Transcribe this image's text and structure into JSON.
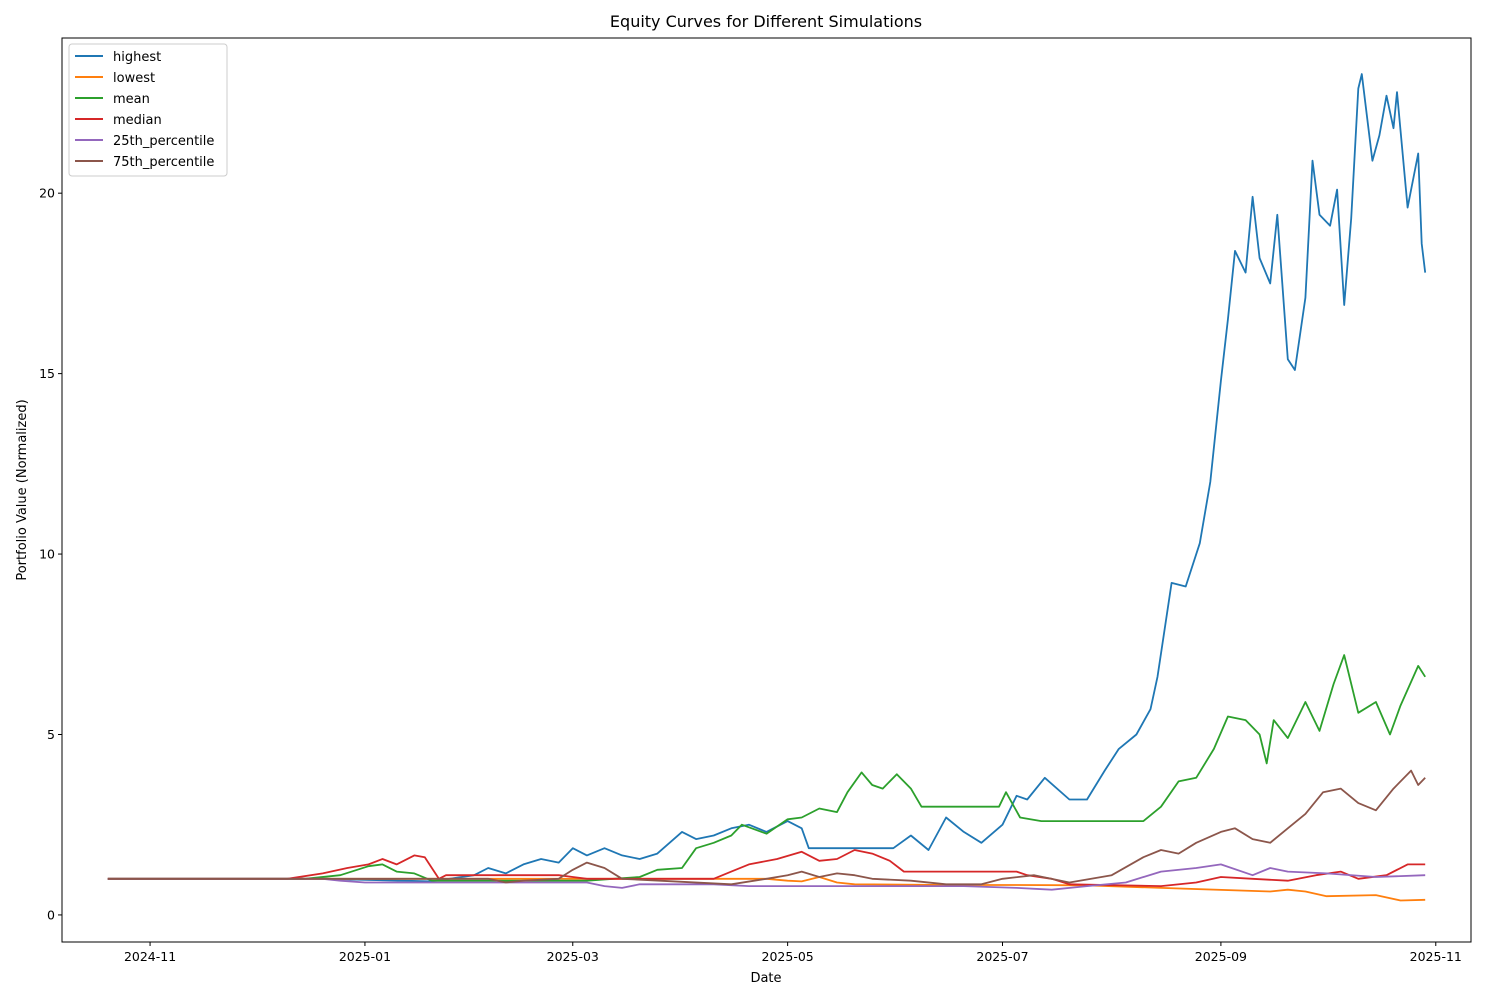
{
  "chart_data": {
    "type": "line",
    "title": "Equity Curves for Different Simulations",
    "xlabel": "Date",
    "ylabel": "Portfolio Value (Normalized)",
    "x_ticks": [
      "2024-11",
      "2025-01",
      "2025-03",
      "2025-05",
      "2025-07",
      "2025-09",
      "2025-11"
    ],
    "y_ticks": [
      0,
      5,
      10,
      15,
      20
    ],
    "xlim": [
      "2024-10-07",
      "2025-11-11"
    ],
    "ylim": [
      -0.75,
      24.3
    ],
    "grid": false,
    "legend_position": "top-left",
    "series": [
      {
        "name": "highest",
        "color": "#1f77b4",
        "points": [
          [
            "2024-10-20",
            1.0
          ],
          [
            "2024-12-20",
            1.0
          ],
          [
            "2025-01-20",
            0.93
          ],
          [
            "2025-02-01",
            1.1
          ],
          [
            "2025-02-05",
            1.3
          ],
          [
            "2025-02-10",
            1.15
          ],
          [
            "2025-02-15",
            1.4
          ],
          [
            "2025-02-20",
            1.55
          ],
          [
            "2025-02-25",
            1.45
          ],
          [
            "2025-03-01",
            1.85
          ],
          [
            "2025-03-05",
            1.65
          ],
          [
            "2025-03-10",
            1.85
          ],
          [
            "2025-03-15",
            1.65
          ],
          [
            "2025-03-20",
            1.55
          ],
          [
            "2025-03-25",
            1.7
          ],
          [
            "2025-04-01",
            2.3
          ],
          [
            "2025-04-05",
            2.1
          ],
          [
            "2025-04-10",
            2.2
          ],
          [
            "2025-04-15",
            2.4
          ],
          [
            "2025-04-20",
            2.5
          ],
          [
            "2025-04-25",
            2.3
          ],
          [
            "2025-05-01",
            2.6
          ],
          [
            "2025-05-05",
            2.4
          ],
          [
            "2025-05-07",
            1.85
          ],
          [
            "2025-05-31",
            1.85
          ],
          [
            "2025-06-05",
            2.2
          ],
          [
            "2025-06-10",
            1.8
          ],
          [
            "2025-06-15",
            2.7
          ],
          [
            "2025-06-20",
            2.3
          ],
          [
            "2025-06-25",
            2.0
          ],
          [
            "2025-07-01",
            2.5
          ],
          [
            "2025-07-05",
            3.3
          ],
          [
            "2025-07-08",
            3.2
          ],
          [
            "2025-07-13",
            3.8
          ],
          [
            "2025-07-20",
            3.2
          ],
          [
            "2025-07-25",
            3.2
          ],
          [
            "2025-07-30",
            4.0
          ],
          [
            "2025-08-03",
            4.6
          ],
          [
            "2025-08-08",
            5.0
          ],
          [
            "2025-08-12",
            5.7
          ],
          [
            "2025-08-14",
            6.6
          ],
          [
            "2025-08-18",
            9.2
          ],
          [
            "2025-08-22",
            9.1
          ],
          [
            "2025-08-26",
            10.3
          ],
          [
            "2025-08-29",
            12.0
          ],
          [
            "2025-09-01",
            14.8
          ],
          [
            "2025-09-03",
            16.5
          ],
          [
            "2025-09-05",
            18.4
          ],
          [
            "2025-09-08",
            17.8
          ],
          [
            "2025-09-10",
            19.9
          ],
          [
            "2025-09-12",
            18.2
          ],
          [
            "2025-09-15",
            17.5
          ],
          [
            "2025-09-17",
            19.4
          ],
          [
            "2025-09-20",
            15.4
          ],
          [
            "2025-09-22",
            15.1
          ],
          [
            "2025-09-25",
            17.1
          ],
          [
            "2025-09-27",
            20.9
          ],
          [
            "2025-09-29",
            19.4
          ],
          [
            "2025-10-02",
            19.1
          ],
          [
            "2025-10-04",
            20.1
          ],
          [
            "2025-10-06",
            16.9
          ],
          [
            "2025-10-08",
            19.3
          ],
          [
            "2025-10-10",
            22.9
          ],
          [
            "2025-10-11",
            23.3
          ],
          [
            "2025-10-14",
            20.9
          ],
          [
            "2025-10-16",
            21.6
          ],
          [
            "2025-10-18",
            22.7
          ],
          [
            "2025-10-20",
            21.8
          ],
          [
            "2025-10-21",
            22.8
          ],
          [
            "2025-10-24",
            19.6
          ],
          [
            "2025-10-27",
            21.1
          ],
          [
            "2025-10-28",
            18.6
          ],
          [
            "2025-10-29",
            17.8
          ]
        ]
      },
      {
        "name": "lowest",
        "color": "#ff7f0e",
        "points": [
          [
            "2024-10-20",
            1.0
          ],
          [
            "2025-04-25",
            1.0
          ],
          [
            "2025-05-01",
            0.95
          ],
          [
            "2025-05-05",
            0.93
          ],
          [
            "2025-05-10",
            1.05
          ],
          [
            "2025-05-15",
            0.9
          ],
          [
            "2025-05-20",
            0.85
          ],
          [
            "2025-06-15",
            0.83
          ],
          [
            "2025-07-05",
            0.83
          ],
          [
            "2025-07-25",
            0.82
          ],
          [
            "2025-08-15",
            0.75
          ],
          [
            "2025-09-15",
            0.65
          ],
          [
            "2025-09-20",
            0.7
          ],
          [
            "2025-09-25",
            0.65
          ],
          [
            "2025-10-01",
            0.52
          ],
          [
            "2025-10-15",
            0.55
          ],
          [
            "2025-10-22",
            0.4
          ],
          [
            "2025-10-29",
            0.42
          ]
        ]
      },
      {
        "name": "mean",
        "color": "#2ca02c",
        "points": [
          [
            "2024-10-20",
            1.0
          ],
          [
            "2024-12-15",
            1.0
          ],
          [
            "2024-12-25",
            1.1
          ],
          [
            "2025-01-02",
            1.35
          ],
          [
            "2025-01-06",
            1.4
          ],
          [
            "2025-01-10",
            1.2
          ],
          [
            "2025-01-15",
            1.15
          ],
          [
            "2025-01-20",
            0.95
          ],
          [
            "2025-03-05",
            0.95
          ],
          [
            "2025-03-20",
            1.05
          ],
          [
            "2025-03-25",
            1.25
          ],
          [
            "2025-04-01",
            1.3
          ],
          [
            "2025-04-05",
            1.85
          ],
          [
            "2025-04-10",
            2.0
          ],
          [
            "2025-04-15",
            2.2
          ],
          [
            "2025-04-18",
            2.5
          ],
          [
            "2025-04-25",
            2.25
          ],
          [
            "2025-05-01",
            2.65
          ],
          [
            "2025-05-05",
            2.7
          ],
          [
            "2025-05-10",
            2.95
          ],
          [
            "2025-05-15",
            2.85
          ],
          [
            "2025-05-18",
            3.4
          ],
          [
            "2025-05-22",
            3.95
          ],
          [
            "2025-05-25",
            3.6
          ],
          [
            "2025-05-28",
            3.5
          ],
          [
            "2025-06-01",
            3.9
          ],
          [
            "2025-06-05",
            3.5
          ],
          [
            "2025-06-08",
            3.0
          ],
          [
            "2025-06-30",
            3.0
          ],
          [
            "2025-07-02",
            3.4
          ],
          [
            "2025-07-06",
            2.7
          ],
          [
            "2025-07-12",
            2.6
          ],
          [
            "2025-08-10",
            2.6
          ],
          [
            "2025-08-15",
            3.0
          ],
          [
            "2025-08-20",
            3.7
          ],
          [
            "2025-08-25",
            3.8
          ],
          [
            "2025-08-30",
            4.6
          ],
          [
            "2025-09-03",
            5.5
          ],
          [
            "2025-09-08",
            5.4
          ],
          [
            "2025-09-12",
            5.0
          ],
          [
            "2025-09-14",
            4.2
          ],
          [
            "2025-09-16",
            5.4
          ],
          [
            "2025-09-20",
            4.9
          ],
          [
            "2025-09-25",
            5.9
          ],
          [
            "2025-09-29",
            5.1
          ],
          [
            "2025-10-03",
            6.4
          ],
          [
            "2025-10-06",
            7.2
          ],
          [
            "2025-10-10",
            5.6
          ],
          [
            "2025-10-15",
            5.9
          ],
          [
            "2025-10-19",
            5.0
          ],
          [
            "2025-10-22",
            5.8
          ],
          [
            "2025-10-27",
            6.9
          ],
          [
            "2025-10-29",
            6.6
          ]
        ]
      },
      {
        "name": "median",
        "color": "#d62728",
        "points": [
          [
            "2024-10-20",
            1.0
          ],
          [
            "2024-12-10",
            1.0
          ],
          [
            "2024-12-20",
            1.15
          ],
          [
            "2024-12-27",
            1.3
          ],
          [
            "2025-01-02",
            1.4
          ],
          [
            "2025-01-06",
            1.55
          ],
          [
            "2025-01-10",
            1.4
          ],
          [
            "2025-01-15",
            1.65
          ],
          [
            "2025-01-18",
            1.6
          ],
          [
            "2025-01-22",
            1.0
          ],
          [
            "2025-01-24",
            1.1
          ],
          [
            "2025-02-25",
            1.1
          ],
          [
            "2025-03-01",
            1.05
          ],
          [
            "2025-03-05",
            1.0
          ],
          [
            "2025-04-10",
            1.0
          ],
          [
            "2025-04-15",
            1.2
          ],
          [
            "2025-04-20",
            1.4
          ],
          [
            "2025-04-28",
            1.55
          ],
          [
            "2025-05-05",
            1.75
          ],
          [
            "2025-05-10",
            1.5
          ],
          [
            "2025-05-15",
            1.55
          ],
          [
            "2025-05-20",
            1.8
          ],
          [
            "2025-05-25",
            1.7
          ],
          [
            "2025-05-30",
            1.5
          ],
          [
            "2025-06-03",
            1.2
          ],
          [
            "2025-07-05",
            1.2
          ],
          [
            "2025-07-08",
            1.1
          ],
          [
            "2025-07-15",
            1.0
          ],
          [
            "2025-07-20",
            0.85
          ],
          [
            "2025-08-15",
            0.8
          ],
          [
            "2025-08-25",
            0.9
          ],
          [
            "2025-09-01",
            1.05
          ],
          [
            "2025-09-10",
            1.0
          ],
          [
            "2025-09-20",
            0.95
          ],
          [
            "2025-09-28",
            1.1
          ],
          [
            "2025-10-05",
            1.2
          ],
          [
            "2025-10-10",
            1.0
          ],
          [
            "2025-10-18",
            1.1
          ],
          [
            "2025-10-24",
            1.4
          ],
          [
            "2025-10-29",
            1.4
          ]
        ]
      },
      {
        "name": "25th_percentile",
        "color": "#9467bd",
        "points": [
          [
            "2024-10-20",
            1.0
          ],
          [
            "2024-12-20",
            1.0
          ],
          [
            "2024-12-25",
            0.95
          ],
          [
            "2025-01-01",
            0.9
          ],
          [
            "2025-03-05",
            0.9
          ],
          [
            "2025-03-10",
            0.8
          ],
          [
            "2025-03-15",
            0.75
          ],
          [
            "2025-03-20",
            0.85
          ],
          [
            "2025-04-10",
            0.85
          ],
          [
            "2025-04-20",
            0.8
          ],
          [
            "2025-06-20",
            0.8
          ],
          [
            "2025-07-05",
            0.75
          ],
          [
            "2025-07-15",
            0.7
          ],
          [
            "2025-07-25",
            0.8
          ],
          [
            "2025-08-05",
            0.9
          ],
          [
            "2025-08-15",
            1.2
          ],
          [
            "2025-08-25",
            1.3
          ],
          [
            "2025-09-01",
            1.4
          ],
          [
            "2025-09-10",
            1.1
          ],
          [
            "2025-09-15",
            1.3
          ],
          [
            "2025-09-20",
            1.2
          ],
          [
            "2025-10-01",
            1.15
          ],
          [
            "2025-10-15",
            1.05
          ],
          [
            "2025-10-29",
            1.1
          ]
        ]
      },
      {
        "name": "75th_percentile",
        "color": "#8c564b",
        "points": [
          [
            "2024-10-20",
            1.0
          ],
          [
            "2025-02-05",
            1.0
          ],
          [
            "2025-02-10",
            0.9
          ],
          [
            "2025-02-15",
            0.95
          ],
          [
            "2025-02-25",
            1.0
          ],
          [
            "2025-03-01",
            1.25
          ],
          [
            "2025-03-05",
            1.45
          ],
          [
            "2025-03-10",
            1.3
          ],
          [
            "2025-03-15",
            1.0
          ],
          [
            "2025-04-15",
            0.85
          ],
          [
            "2025-04-25",
            1.0
          ],
          [
            "2025-05-01",
            1.1
          ],
          [
            "2025-05-05",
            1.2
          ],
          [
            "2025-05-10",
            1.05
          ],
          [
            "2025-05-15",
            1.15
          ],
          [
            "2025-05-20",
            1.1
          ],
          [
            "2025-05-25",
            1.0
          ],
          [
            "2025-06-05",
            0.95
          ],
          [
            "2025-06-15",
            0.85
          ],
          [
            "2025-06-25",
            0.85
          ],
          [
            "2025-07-01",
            1.0
          ],
          [
            "2025-07-10",
            1.1
          ],
          [
            "2025-07-20",
            0.9
          ],
          [
            "2025-08-01",
            1.1
          ],
          [
            "2025-08-10",
            1.6
          ],
          [
            "2025-08-15",
            1.8
          ],
          [
            "2025-08-20",
            1.7
          ],
          [
            "2025-08-25",
            2.0
          ],
          [
            "2025-09-01",
            2.3
          ],
          [
            "2025-09-05",
            2.4
          ],
          [
            "2025-09-10",
            2.1
          ],
          [
            "2025-09-15",
            2.0
          ],
          [
            "2025-09-20",
            2.4
          ],
          [
            "2025-09-25",
            2.8
          ],
          [
            "2025-09-30",
            3.4
          ],
          [
            "2025-10-05",
            3.5
          ],
          [
            "2025-10-10",
            3.1
          ],
          [
            "2025-10-15",
            2.9
          ],
          [
            "2025-10-20",
            3.5
          ],
          [
            "2025-10-25",
            4.0
          ],
          [
            "2025-10-27",
            3.6
          ],
          [
            "2025-10-29",
            3.8
          ]
        ]
      }
    ]
  }
}
